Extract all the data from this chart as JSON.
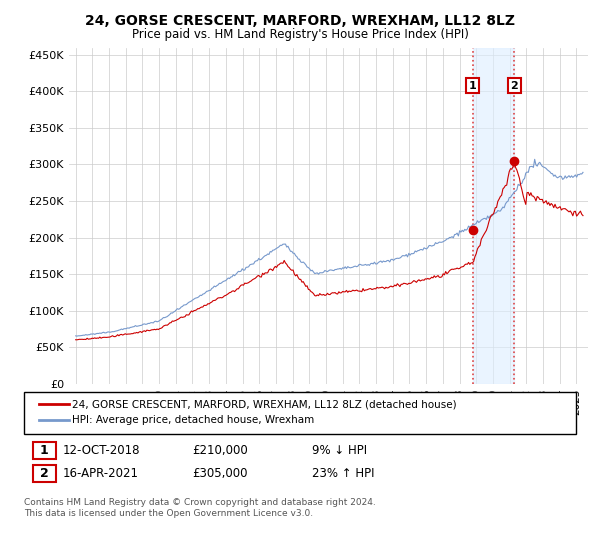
{
  "title": "24, GORSE CRESCENT, MARFORD, WREXHAM, LL12 8LZ",
  "subtitle": "Price paid vs. HM Land Registry's House Price Index (HPI)",
  "ylabel_ticks": [
    "£0",
    "£50K",
    "£100K",
    "£150K",
    "£200K",
    "£250K",
    "£300K",
    "£350K",
    "£400K",
    "£450K"
  ],
  "ytick_values": [
    0,
    50000,
    100000,
    150000,
    200000,
    250000,
    300000,
    350000,
    400000,
    450000
  ],
  "sale1_date": 2018.79,
  "sale1_price": 210000,
  "sale1_label": "1",
  "sale2_date": 2021.29,
  "sale2_price": 305000,
  "sale2_label": "2",
  "red_line_color": "#cc0000",
  "blue_line_color": "#7799cc",
  "vline_color": "#dd4444",
  "shade_color": "#ddeeff",
  "shade_alpha": 0.6,
  "legend_line1": "24, GORSE CRESCENT, MARFORD, WREXHAM, LL12 8LZ (detached house)",
  "legend_line2": "HPI: Average price, detached house, Wrexham",
  "annotation1_num": "1",
  "annotation1_date": "12-OCT-2018",
  "annotation1_price": "£210,000",
  "annotation1_pct": "9% ↓ HPI",
  "annotation2_num": "2",
  "annotation2_date": "16-APR-2021",
  "annotation2_price": "£305,000",
  "annotation2_pct": "23% ↑ HPI",
  "footnote": "Contains HM Land Registry data © Crown copyright and database right 2024.\nThis data is licensed under the Open Government Licence v3.0.",
  "background_color": "#ffffff",
  "grid_color": "#cccccc"
}
